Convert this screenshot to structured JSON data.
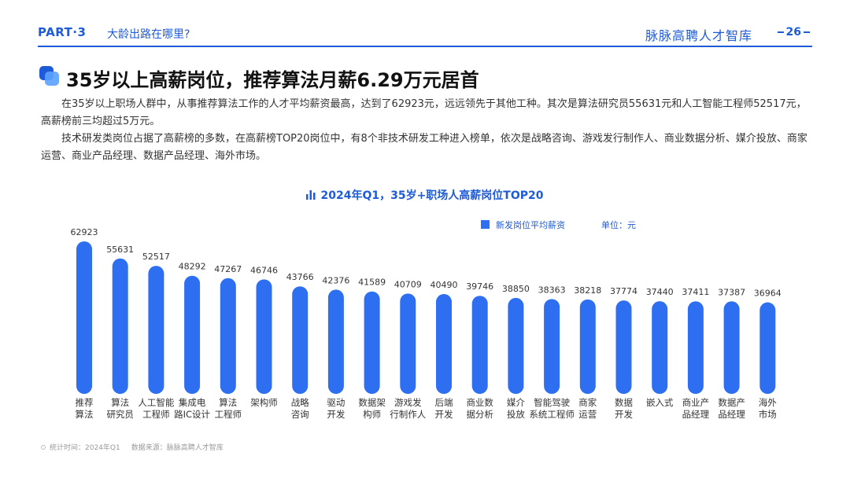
{
  "header": {
    "part": "PART·3",
    "part_title": "大龄出路在哪里?",
    "brand": "脉脉高聘人才智库",
    "page": "26"
  },
  "heading": "35岁以上高薪岗位，推荐算法月薪6.29万元居首",
  "paragraphs": [
    "在35岁以上职场人群中，从事推荐算法工作的人才平均薪资最高，达到了62923元，远远领先于其他工种。其次是算法研究员55631元和人工智能工程师52517元，高薪榜前三均超过5万元。",
    "技术研发类岗位占据了高薪榜的多数，在高薪榜TOP20岗位中，有8个非技术研发工种进入榜单，依次是战略咨询、游戏发行制作人、商业数据分析、媒介投放、商家运营、商业产品经理、数据产品经理、海外市场。"
  ],
  "chart_data": {
    "type": "bar",
    "title": "2024年Q1，35岁+职场人高薪岗位TOP20",
    "legend": "新发岗位平均薪资",
    "unit": "单位：元",
    "categories": [
      [
        "推荐",
        "算法"
      ],
      [
        "算法",
        "研究员"
      ],
      [
        "人工智能",
        "工程师"
      ],
      [
        "集成电",
        "路IC设计"
      ],
      [
        "算法",
        "工程师"
      ],
      [
        "架构师"
      ],
      [
        "战略",
        "咨询"
      ],
      [
        "驱动",
        "开发"
      ],
      [
        "数据架",
        "构师"
      ],
      [
        "游戏发",
        "行制作人"
      ],
      [
        "后端",
        "开发"
      ],
      [
        "商业数",
        "据分析"
      ],
      [
        "媒介",
        "投放"
      ],
      [
        "智能驾驶",
        "系统工程师"
      ],
      [
        "商家",
        "运营"
      ],
      [
        "数据",
        "开发"
      ],
      [
        "嵌入式"
      ],
      [
        "商业产",
        "品经理"
      ],
      [
        "数据产",
        "品经理"
      ],
      [
        "海外",
        "市场"
      ]
    ],
    "values": [
      62923,
      55631,
      52517,
      48292,
      47267,
      46746,
      43766,
      42376,
      41589,
      40709,
      40490,
      39746,
      38850,
      38363,
      38218,
      37774,
      37440,
      37411,
      37387,
      36964
    ],
    "bar_color": "#2d6ff0",
    "label_color": "#333333",
    "grid": false
  },
  "footnote": {
    "time": "统计时间：2024年Q1",
    "source": "数据来源：脉脉高聘人才智库"
  },
  "colors": {
    "accent": "#1e5bd8"
  }
}
